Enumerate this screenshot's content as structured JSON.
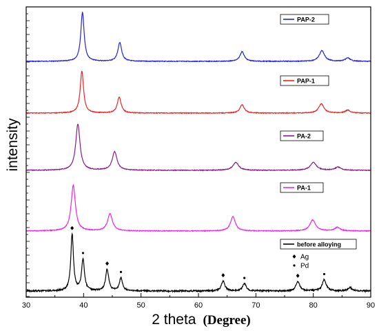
{
  "chart_data": {
    "type": "line",
    "xlabel_main": "2 theta",
    "xlabel_unit": "(Degree)",
    "ylabel": "intensity",
    "xlim": [
      30,
      90
    ],
    "xticks": [
      30,
      40,
      50,
      60,
      70,
      80,
      90
    ],
    "y_ticks_shown": false,
    "grid": false,
    "series": [
      {
        "name": "PAP-2",
        "color": "#2222dd",
        "peaks": [
          {
            "x": 39.8,
            "height": 1.0,
            "width": 0.35
          },
          {
            "x": 46.3,
            "height": 0.38,
            "width": 0.4
          },
          {
            "x": 67.6,
            "height": 0.2,
            "width": 0.45
          },
          {
            "x": 81.5,
            "height": 0.22,
            "width": 0.55
          },
          {
            "x": 86.0,
            "height": 0.07,
            "width": 0.5
          }
        ]
      },
      {
        "name": "PAP-1",
        "color": "#ee2222",
        "peaks": [
          {
            "x": 39.7,
            "height": 1.0,
            "width": 0.35
          },
          {
            "x": 46.2,
            "height": 0.38,
            "width": 0.4
          },
          {
            "x": 67.6,
            "height": 0.2,
            "width": 0.45
          },
          {
            "x": 81.4,
            "height": 0.22,
            "width": 0.55
          },
          {
            "x": 86.0,
            "height": 0.07,
            "width": 0.5
          }
        ]
      },
      {
        "name": "PA-2",
        "color": "#8a1a8a",
        "peaks": [
          {
            "x": 39.0,
            "height": 1.0,
            "width": 0.45
          },
          {
            "x": 45.4,
            "height": 0.4,
            "width": 0.5
          },
          {
            "x": 66.5,
            "height": 0.17,
            "width": 0.6
          },
          {
            "x": 80.0,
            "height": 0.17,
            "width": 0.65
          },
          {
            "x": 84.3,
            "height": 0.07,
            "width": 0.6
          }
        ]
      },
      {
        "name": "PA-1",
        "color": "#ee22ee",
        "peaks": [
          {
            "x": 38.2,
            "height": 1.0,
            "width": 0.45
          },
          {
            "x": 44.6,
            "height": 0.38,
            "width": 0.5
          },
          {
            "x": 66.0,
            "height": 0.32,
            "width": 0.5
          },
          {
            "x": 79.9,
            "height": 0.24,
            "width": 0.6
          },
          {
            "x": 84.2,
            "height": 0.08,
            "width": 0.55
          }
        ]
      },
      {
        "name": "before alloying",
        "color": "#000000",
        "peaks": [
          {
            "x": 38.0,
            "height": 1.0,
            "width": 0.28
          },
          {
            "x": 39.9,
            "height": 0.55,
            "width": 0.3
          },
          {
            "x": 44.1,
            "height": 0.38,
            "width": 0.32
          },
          {
            "x": 46.5,
            "height": 0.23,
            "width": 0.32
          },
          {
            "x": 64.3,
            "height": 0.18,
            "width": 0.36
          },
          {
            "x": 68.0,
            "height": 0.13,
            "width": 0.38
          },
          {
            "x": 77.3,
            "height": 0.17,
            "width": 0.4
          },
          {
            "x": 81.9,
            "height": 0.2,
            "width": 0.42
          },
          {
            "x": 86.4,
            "height": 0.06,
            "width": 0.4
          }
        ]
      }
    ],
    "peak_markers": [
      {
        "x": 38.0,
        "symbol": "diamond"
      },
      {
        "x": 39.9,
        "symbol": "dot"
      },
      {
        "x": 44.1,
        "symbol": "diamond"
      },
      {
        "x": 46.5,
        "symbol": "dot"
      },
      {
        "x": 64.3,
        "symbol": "diamond"
      },
      {
        "x": 68.0,
        "symbol": "dot"
      },
      {
        "x": 77.3,
        "symbol": "diamond"
      },
      {
        "x": 81.9,
        "symbol": "dot"
      }
    ],
    "marker_legend": [
      {
        "symbol": "diamond",
        "label": "Ag"
      },
      {
        "symbol": "dot",
        "label": "Pd"
      }
    ]
  }
}
